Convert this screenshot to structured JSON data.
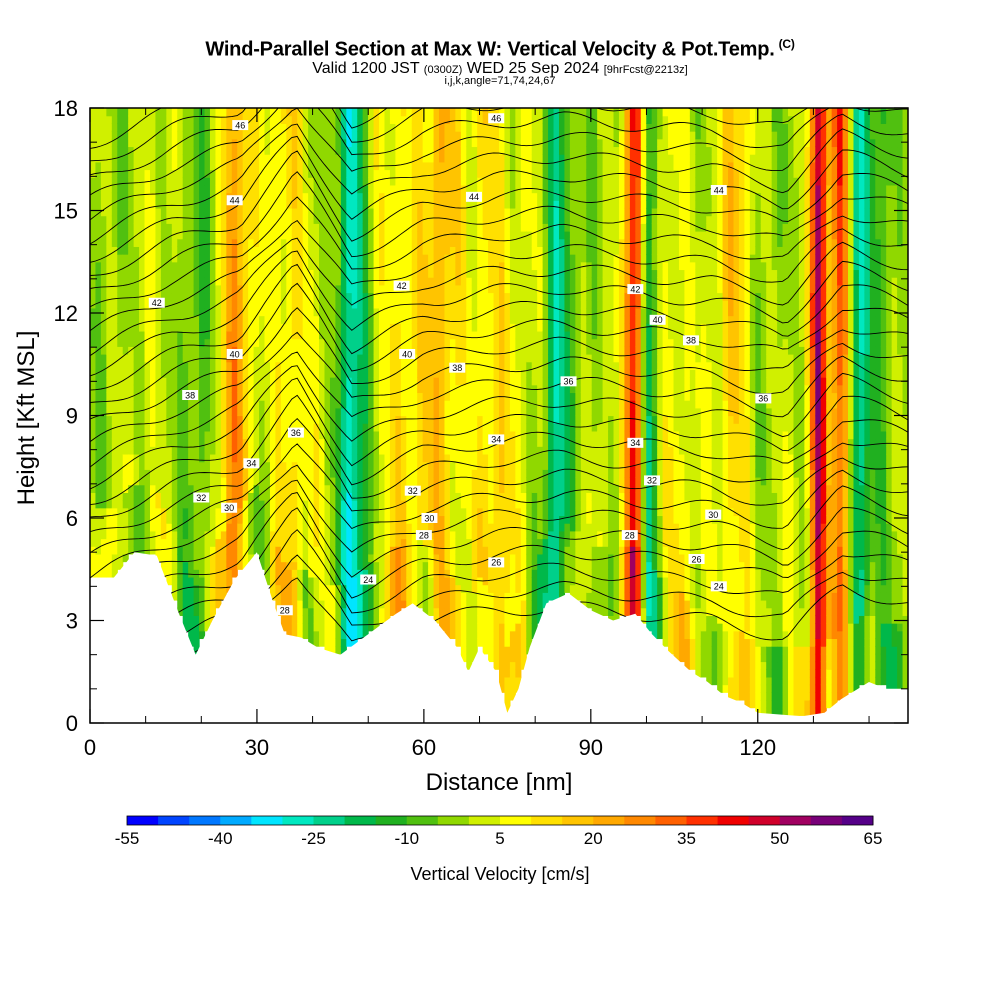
{
  "header": {
    "title": "Wind-Parallel Section at Max W: Vertical Velocity & Pot.Temp.",
    "copyright": "(C)",
    "valid_prefix": "Valid 1200 JST",
    "valid_utc": "(0300Z)",
    "valid_date": "WED 25 Sep 2024",
    "forecast": "[9hrFcst@2213z]",
    "grid_info": "i,j,k,angle=71,74,24,67"
  },
  "chart_data": {
    "type": "heatmap",
    "title": "Wind-Parallel Section at Max W: Vertical Velocity & Pot.Temp.",
    "xlabel": "Distance [nm]",
    "ylabel": "Height [Kft MSL]",
    "xlim": [
      0,
      147
    ],
    "ylim": [
      0,
      18
    ],
    "x_ticks": [
      "0",
      "30",
      "60",
      "90",
      "120"
    ],
    "y_ticks": [
      "0",
      "3",
      "6",
      "9",
      "12",
      "15",
      "18"
    ],
    "colorbar": {
      "label": "Vertical Velocity [cm/s]",
      "tick_labels": [
        "-55",
        "-40",
        "-25",
        "-10",
        "5",
        "20",
        "35",
        "50",
        "65"
      ],
      "min": -55,
      "max": 65,
      "colors": [
        "#0000ff",
        "#0044ff",
        "#0077ff",
        "#00aaff",
        "#00e5ff",
        "#00e8c0",
        "#00d08a",
        "#00b84a",
        "#20b020",
        "#50c010",
        "#90d800",
        "#d0f000",
        "#ffff00",
        "#ffe000",
        "#ffc400",
        "#ffa800",
        "#ff8800",
        "#ff6000",
        "#ff3000",
        "#f00000",
        "#d0002a",
        "#a00060",
        "#780078",
        "#550088"
      ]
    },
    "terrain_kft": [
      [
        0,
        4.2
      ],
      [
        4,
        4.2
      ],
      [
        8,
        5.0
      ],
      [
        12,
        4.9
      ],
      [
        16,
        3.2
      ],
      [
        19,
        2.0
      ],
      [
        22,
        3.0
      ],
      [
        26,
        4.2
      ],
      [
        30,
        5.0
      ],
      [
        33,
        3.5
      ],
      [
        35,
        2.6
      ],
      [
        38,
        2.5
      ],
      [
        41,
        2.2
      ],
      [
        45,
        2.0
      ],
      [
        50,
        2.6
      ],
      [
        55,
        3.2
      ],
      [
        58,
        3.5
      ],
      [
        62,
        3.0
      ],
      [
        66,
        2.2
      ],
      [
        68,
        1.5
      ],
      [
        70,
        2.2
      ],
      [
        73,
        1.5
      ],
      [
        75,
        0.3
      ],
      [
        77,
        1.0
      ],
      [
        79,
        2.2
      ],
      [
        82,
        3.5
      ],
      [
        86,
        3.8
      ],
      [
        90,
        3.3
      ],
      [
        94,
        3.0
      ],
      [
        98,
        3.2
      ],
      [
        101,
        2.6
      ],
      [
        104,
        2.1
      ],
      [
        108,
        1.5
      ],
      [
        111,
        1.2
      ],
      [
        114,
        0.8
      ],
      [
        117,
        0.6
      ],
      [
        120,
        0.3
      ],
      [
        128,
        0.2
      ],
      [
        132,
        0.3
      ],
      [
        135,
        0.7
      ],
      [
        140,
        1.2
      ],
      [
        143,
        1.0
      ],
      [
        147,
        1.0
      ]
    ],
    "theta_labels": [
      {
        "text": "46",
        "x": 27,
        "y": 17.5
      },
      {
        "text": "46",
        "x": 73,
        "y": 17.7
      },
      {
        "text": "44",
        "x": 26,
        "y": 15.3
      },
      {
        "text": "44",
        "x": 69,
        "y": 15.4
      },
      {
        "text": "44",
        "x": 113,
        "y": 15.6
      },
      {
        "text": "42",
        "x": 12,
        "y": 12.3
      },
      {
        "text": "42",
        "x": 56,
        "y": 12.8
      },
      {
        "text": "42",
        "x": 98,
        "y": 12.7
      },
      {
        "text": "40",
        "x": 26,
        "y": 10.8
      },
      {
        "text": "40",
        "x": 57,
        "y": 10.8
      },
      {
        "text": "40",
        "x": 102,
        "y": 11.8
      },
      {
        "text": "38",
        "x": 18,
        "y": 9.6
      },
      {
        "text": "38",
        "x": 66,
        "y": 10.4
      },
      {
        "text": "38",
        "x": 108,
        "y": 11.2
      },
      {
        "text": "36",
        "x": 37,
        "y": 8.5
      },
      {
        "text": "36",
        "x": 86,
        "y": 10.0
      },
      {
        "text": "36",
        "x": 121,
        "y": 9.5
      },
      {
        "text": "34",
        "x": 29,
        "y": 7.6
      },
      {
        "text": "34",
        "x": 73,
        "y": 8.3
      },
      {
        "text": "34",
        "x": 98,
        "y": 8.2
      },
      {
        "text": "32",
        "x": 20,
        "y": 6.6
      },
      {
        "text": "32",
        "x": 58,
        "y": 6.8
      },
      {
        "text": "32",
        "x": 101,
        "y": 7.1
      },
      {
        "text": "30",
        "x": 25,
        "y": 6.3
      },
      {
        "text": "30",
        "x": 61,
        "y": 6.0
      },
      {
        "text": "30",
        "x": 112,
        "y": 6.1
      },
      {
        "text": "28",
        "x": 60,
        "y": 5.5
      },
      {
        "text": "28",
        "x": 97,
        "y": 5.5
      },
      {
        "text": "28",
        "x": 35,
        "y": 3.3
      },
      {
        "text": "26",
        "x": 73,
        "y": 4.7
      },
      {
        "text": "26",
        "x": 109,
        "y": 4.8
      },
      {
        "text": "24",
        "x": 50,
        "y": 4.2
      },
      {
        "text": "24",
        "x": 113,
        "y": 4.0
      }
    ]
  }
}
